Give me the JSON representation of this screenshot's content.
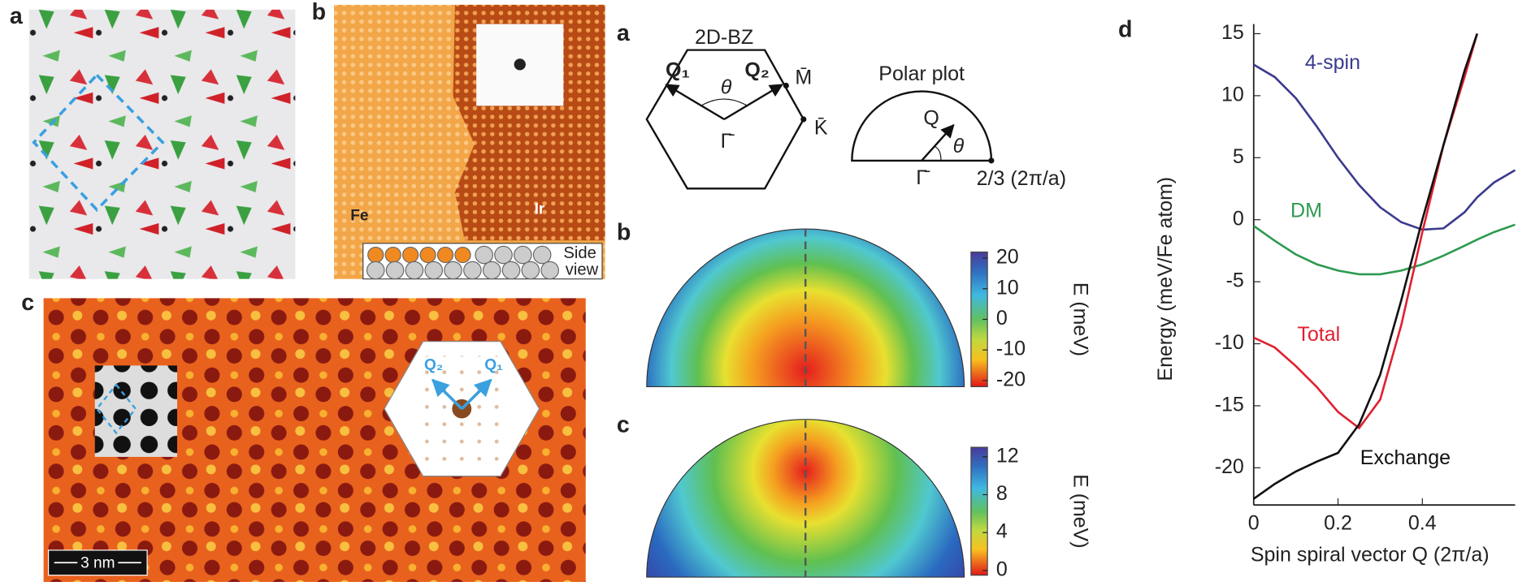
{
  "figure": {
    "left": {
      "label_a": "a",
      "label_b": "b",
      "label_c": "c",
      "fe": "Fe",
      "ir": "Ir",
      "side": "Side",
      "view": "view",
      "q1": "Q₁",
      "q2": "Q₂",
      "scale_bar": "3 nm"
    },
    "middle": {
      "label_a": "a",
      "label_b": "b",
      "label_c": "c",
      "bz_title": "2D-BZ",
      "q1": "Q₁",
      "q2": "Q₂",
      "theta": "θ",
      "m_point": "M̄",
      "k_point": "K̄",
      "gamma": "Γ̄",
      "polar_title": "Polar plot",
      "polar_q": "Q",
      "polar_theta": "θ",
      "polar_gamma": "Γ̄",
      "polar_radius": "2/3 (2π/a)"
    },
    "colorbar_b": {
      "label": "E (meV)",
      "lim": [
        -22,
        22
      ],
      "ticks": [
        20,
        10,
        0,
        -10,
        -20
      ]
    },
    "colorbar_c": {
      "label": "E (meV)",
      "lim": [
        -0.5,
        13
      ],
      "ticks": [
        12,
        8,
        4,
        0
      ]
    },
    "label_d": "d"
  },
  "chart_data": {
    "type": "line",
    "xlabel": "Spin spiral vector Q (2π/a)",
    "ylabel": "Energy (meV/Fe atom)",
    "x": [
      0,
      0.05,
      0.1,
      0.15,
      0.2,
      0.25,
      0.3,
      0.35,
      0.4,
      0.45,
      0.5,
      0.53,
      0.57,
      0.62
    ],
    "series": [
      {
        "name": "4-spin",
        "color": "#3b3a8e",
        "values": [
          12.5,
          11.5,
          9.8,
          7.5,
          5.0,
          2.8,
          1.0,
          -0.2,
          -0.8,
          -0.7,
          0.6,
          1.8,
          3.0,
          4.0
        ]
      },
      {
        "name": "DM",
        "color": "#2e9a50",
        "values": [
          -0.5,
          -1.7,
          -2.8,
          -3.6,
          -4.1,
          -4.4,
          -4.4,
          -4.1,
          -3.6,
          -2.9,
          -2.1,
          -1.6,
          -1.0,
          -0.4
        ]
      },
      {
        "name": "Total",
        "color": "#e0202e",
        "values": [
          -9.5,
          -10.3,
          -11.8,
          -13.5,
          -15.5,
          -16.8,
          -14.5,
          -8.5,
          -1.0,
          6.0,
          11.5,
          15,
          null,
          null
        ]
      },
      {
        "name": "Exchange",
        "color": "#111111",
        "values": [
          -22.5,
          -21.3,
          -20.3,
          -19.5,
          -18.8,
          -16.5,
          -12.5,
          -6.5,
          0.0,
          6.0,
          12.0,
          15,
          null,
          null
        ]
      }
    ],
    "xlim": [
      0,
      0.62
    ],
    "ylim": [
      -23,
      15
    ],
    "xticks": [
      0,
      0.2,
      0.4
    ],
    "yticks": [
      15,
      10,
      5,
      0,
      -5,
      -10,
      -15,
      -20
    ],
    "grid": false
  }
}
